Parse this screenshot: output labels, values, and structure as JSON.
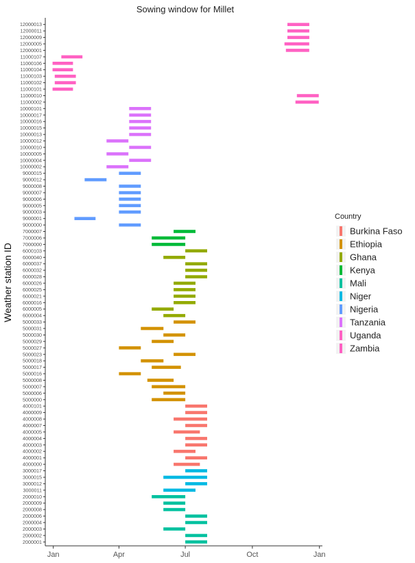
{
  "chart_data": {
    "type": "bar",
    "orientation": "horizontal-range",
    "title": "Sowing window for Millet",
    "ylabel": "Weather station ID",
    "xlabel": "",
    "x_ticks": [
      {
        "label": "Jan",
        "day": 1
      },
      {
        "label": "Apr",
        "day": 91
      },
      {
        "label": "Jul",
        "day": 182
      },
      {
        "label": "Oct",
        "day": 274
      },
      {
        "label": "Jan",
        "day": 366
      }
    ],
    "xlim": [
      -10,
      370
    ],
    "grid": false,
    "legend": {
      "title": "Country",
      "position": "right",
      "entries": [
        {
          "name": "Burkina Faso",
          "color": "#F8766D"
        },
        {
          "name": "Ethiopia",
          "color": "#D39200"
        },
        {
          "name": "Ghana",
          "color": "#93AA00"
        },
        {
          "name": "Kenya",
          "color": "#00BA38"
        },
        {
          "name": "Mali",
          "color": "#00C19F"
        },
        {
          "name": "Niger",
          "color": "#00B9E3"
        },
        {
          "name": "Nigeria",
          "color": "#619CFF"
        },
        {
          "name": "Tanzania",
          "color": "#DB72FB"
        },
        {
          "name": "Uganda",
          "color": "#FF61C3"
        },
        {
          "name": "Zambia",
          "color": "#FF61C3"
        }
      ]
    },
    "stations": [
      {
        "id": "12000013",
        "country": "Zambia",
        "start": 322,
        "end": 352
      },
      {
        "id": "12000011",
        "country": "Zambia",
        "start": 322,
        "end": 352
      },
      {
        "id": "12000009",
        "country": "Zambia",
        "start": 322,
        "end": 352
      },
      {
        "id": "12000005",
        "country": "Zambia",
        "start": 318,
        "end": 352
      },
      {
        "id": "12000001",
        "country": "Zambia",
        "start": 320,
        "end": 352
      },
      {
        "id": "11000107",
        "country": "Uganda",
        "start": 12,
        "end": 41
      },
      {
        "id": "11000106",
        "country": "Uganda",
        "start": 0,
        "end": 28
      },
      {
        "id": "11000104",
        "country": "Uganda",
        "start": 0,
        "end": 28
      },
      {
        "id": "11000103",
        "country": "Uganda",
        "start": 3,
        "end": 32
      },
      {
        "id": "11000102",
        "country": "Uganda",
        "start": 3,
        "end": 32
      },
      {
        "id": "11000101",
        "country": "Uganda",
        "start": 0,
        "end": 28
      },
      {
        "id": "11000010",
        "country": "Uganda",
        "start": 335,
        "end": 365
      },
      {
        "id": "11000002",
        "country": "Uganda",
        "start": 333,
        "end": 365
      },
      {
        "id": "10000101",
        "country": "Tanzania",
        "start": 105,
        "end": 135
      },
      {
        "id": "10000017",
        "country": "Tanzania",
        "start": 105,
        "end": 135
      },
      {
        "id": "10000016",
        "country": "Tanzania",
        "start": 105,
        "end": 135
      },
      {
        "id": "10000015",
        "country": "Tanzania",
        "start": 105,
        "end": 135
      },
      {
        "id": "10000013",
        "country": "Tanzania",
        "start": 105,
        "end": 135
      },
      {
        "id": "10000012",
        "country": "Tanzania",
        "start": 74,
        "end": 104
      },
      {
        "id": "10000010",
        "country": "Tanzania",
        "start": 105,
        "end": 135
      },
      {
        "id": "10000005",
        "country": "Tanzania",
        "start": 74,
        "end": 104
      },
      {
        "id": "10000004",
        "country": "Tanzania",
        "start": 105,
        "end": 135
      },
      {
        "id": "10000002",
        "country": "Tanzania",
        "start": 74,
        "end": 104
      },
      {
        "id": "9000015",
        "country": "Nigeria",
        "start": 91,
        "end": 121
      },
      {
        "id": "9000012",
        "country": "Nigeria",
        "start": 44,
        "end": 74
      },
      {
        "id": "9000008",
        "country": "Nigeria",
        "start": 91,
        "end": 121
      },
      {
        "id": "9000007",
        "country": "Nigeria",
        "start": 91,
        "end": 121
      },
      {
        "id": "9000006",
        "country": "Nigeria",
        "start": 91,
        "end": 121
      },
      {
        "id": "9000005",
        "country": "Nigeria",
        "start": 91,
        "end": 121
      },
      {
        "id": "9000003",
        "country": "Nigeria",
        "start": 91,
        "end": 121
      },
      {
        "id": "9000001",
        "country": "Nigeria",
        "start": 30,
        "end": 59
      },
      {
        "id": "9000000",
        "country": "Nigeria",
        "start": 91,
        "end": 121
      },
      {
        "id": "7000007",
        "country": "Kenya",
        "start": 166,
        "end": 196
      },
      {
        "id": "7000006",
        "country": "Kenya",
        "start": 136,
        "end": 182
      },
      {
        "id": "7000000",
        "country": "Kenya",
        "start": 136,
        "end": 182
      },
      {
        "id": "6000103",
        "country": "Ghana",
        "start": 182,
        "end": 212
      },
      {
        "id": "6000040",
        "country": "Ghana",
        "start": 152,
        "end": 182
      },
      {
        "id": "6000037",
        "country": "Ghana",
        "start": 182,
        "end": 212
      },
      {
        "id": "6000032",
        "country": "Ghana",
        "start": 182,
        "end": 212
      },
      {
        "id": "6000028",
        "country": "Ghana",
        "start": 182,
        "end": 212
      },
      {
        "id": "6000026",
        "country": "Ghana",
        "start": 166,
        "end": 196
      },
      {
        "id": "6000025",
        "country": "Ghana",
        "start": 166,
        "end": 196
      },
      {
        "id": "6000021",
        "country": "Ghana",
        "start": 166,
        "end": 196
      },
      {
        "id": "6000016",
        "country": "Ghana",
        "start": 166,
        "end": 196
      },
      {
        "id": "6000005",
        "country": "Ghana",
        "start": 136,
        "end": 166
      },
      {
        "id": "6000004",
        "country": "Ghana",
        "start": 152,
        "end": 182
      },
      {
        "id": "5000033",
        "country": "Ethiopia",
        "start": 166,
        "end": 196
      },
      {
        "id": "5000031",
        "country": "Ethiopia",
        "start": 121,
        "end": 152
      },
      {
        "id": "5000030",
        "country": "Ethiopia",
        "start": 152,
        "end": 182
      },
      {
        "id": "5000029",
        "country": "Ethiopia",
        "start": 136,
        "end": 166
      },
      {
        "id": "5000027",
        "country": "Ethiopia",
        "start": 91,
        "end": 121
      },
      {
        "id": "5000023",
        "country": "Ethiopia",
        "start": 166,
        "end": 196
      },
      {
        "id": "5000018",
        "country": "Ethiopia",
        "start": 121,
        "end": 152
      },
      {
        "id": "5000017",
        "country": "Ethiopia",
        "start": 136,
        "end": 176
      },
      {
        "id": "5000016",
        "country": "Ethiopia",
        "start": 91,
        "end": 121
      },
      {
        "id": "5000008",
        "country": "Ethiopia",
        "start": 130,
        "end": 166
      },
      {
        "id": "5000007",
        "country": "Ethiopia",
        "start": 136,
        "end": 182
      },
      {
        "id": "5000006",
        "country": "Ethiopia",
        "start": 152,
        "end": 182
      },
      {
        "id": "5000000",
        "country": "Ethiopia",
        "start": 136,
        "end": 182
      },
      {
        "id": "4000101",
        "country": "Burkina Faso",
        "start": 182,
        "end": 212
      },
      {
        "id": "4000009",
        "country": "Burkina Faso",
        "start": 182,
        "end": 212
      },
      {
        "id": "4000008",
        "country": "Burkina Faso",
        "start": 166,
        "end": 212
      },
      {
        "id": "4000007",
        "country": "Burkina Faso",
        "start": 182,
        "end": 212
      },
      {
        "id": "4000005",
        "country": "Burkina Faso",
        "start": 166,
        "end": 202
      },
      {
        "id": "4000004",
        "country": "Burkina Faso",
        "start": 182,
        "end": 212
      },
      {
        "id": "4000003",
        "country": "Burkina Faso",
        "start": 182,
        "end": 212
      },
      {
        "id": "4000002",
        "country": "Burkina Faso",
        "start": 166,
        "end": 196
      },
      {
        "id": "4000001",
        "country": "Burkina Faso",
        "start": 182,
        "end": 212
      },
      {
        "id": "4000000",
        "country": "Burkina Faso",
        "start": 166,
        "end": 202
      },
      {
        "id": "3000017",
        "country": "Niger",
        "start": 182,
        "end": 212
      },
      {
        "id": "3000015",
        "country": "Niger",
        "start": 152,
        "end": 212
      },
      {
        "id": "3000012",
        "country": "Niger",
        "start": 182,
        "end": 212
      },
      {
        "id": "3000011",
        "country": "Niger",
        "start": 152,
        "end": 196
      },
      {
        "id": "2000010",
        "country": "Mali",
        "start": 136,
        "end": 182
      },
      {
        "id": "2000009",
        "country": "Mali",
        "start": 152,
        "end": 182
      },
      {
        "id": "2000008",
        "country": "Mali",
        "start": 152,
        "end": 182
      },
      {
        "id": "2000006",
        "country": "Mali",
        "start": 182,
        "end": 212
      },
      {
        "id": "2000004",
        "country": "Mali",
        "start": 182,
        "end": 212
      },
      {
        "id": "2000003",
        "country": "Mali",
        "start": 152,
        "end": 182
      },
      {
        "id": "2000002",
        "country": "Mali",
        "start": 182,
        "end": 212
      },
      {
        "id": "2000001",
        "country": "Mali",
        "start": 182,
        "end": 212
      }
    ]
  }
}
